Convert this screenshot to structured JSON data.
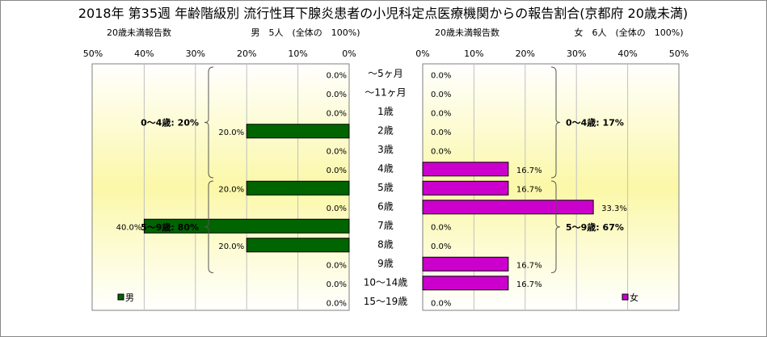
{
  "title": "2018年 第35週 年齢階級別 流行性耳下腺炎患者の小児科定点医療機関からの報告割合(京都府 20歳未満)",
  "left_header": {
    "label": "20歳未満報告数",
    "summary": "男　5人　(全体の　100%)"
  },
  "right_header": {
    "label": "20歳未満報告数",
    "summary": "女　6人　(全体の　100%)"
  },
  "colors": {
    "male": "#006400",
    "female": "#cc00cc",
    "plot_top": "#ffffff",
    "plot_mid": "#fbf8a8"
  },
  "chart_data": {
    "type": "bar",
    "orientation": "horizontal",
    "layout": "population-pyramid",
    "title": "2018年 第35週 年齢階級別 流行性耳下腺炎患者の小児科定点医療機関からの報告割合(京都府 20歳未満)",
    "xlim": [
      0,
      50
    ],
    "x_ticks": [
      "50%",
      "40%",
      "30%",
      "20%",
      "10%",
      "0%"
    ],
    "x_ticks_right": [
      "0%",
      "10%",
      "20%",
      "30%",
      "40%",
      "50%"
    ],
    "categories": [
      "～5ヶ月",
      "～11ヶ月",
      "1歳",
      "2歳",
      "3歳",
      "4歳",
      "5歳",
      "6歳",
      "7歳",
      "8歳",
      "9歳",
      "10～14歳",
      "15～19歳"
    ],
    "series": [
      {
        "name": "男",
        "side": "left",
        "values": [
          0,
          0,
          0,
          20,
          0,
          0,
          20,
          0,
          40,
          20,
          0,
          0,
          0
        ],
        "labels": [
          "0.0%",
          "0.0%",
          "0.0%",
          "20.0%",
          "0.0%",
          "0.0%",
          "20.0%",
          "0.0%",
          "40.0%",
          "20.0%",
          "0.0%",
          "0.0%",
          "0.0%"
        ]
      },
      {
        "name": "女",
        "side": "right",
        "values": [
          0,
          0,
          0,
          0,
          0,
          16.7,
          16.7,
          33.3,
          0,
          0,
          16.7,
          16.7,
          0
        ],
        "labels": [
          "0.0%",
          "0.0%",
          "0.0%",
          "0.0%",
          "0.0%",
          "16.7%",
          "16.7%",
          "33.3%",
          "0.0%",
          "0.0%",
          "16.7%",
          "16.7%",
          "0.0%"
        ]
      }
    ],
    "annotations": [
      {
        "side": "left",
        "text": "0～4歳: 20%",
        "from": 0,
        "to": 5
      },
      {
        "side": "left",
        "text": "5～9歳: 80%",
        "from": 6,
        "to": 10
      },
      {
        "side": "right",
        "text": "0～4歳: 17%",
        "from": 0,
        "to": 5
      },
      {
        "side": "right",
        "text": "5～9歳: 67%",
        "from": 6,
        "to": 10
      }
    ],
    "legend": [
      {
        "name": "男",
        "position": "bottom-left"
      },
      {
        "name": "女",
        "position": "bottom-right"
      }
    ],
    "grid": true
  }
}
